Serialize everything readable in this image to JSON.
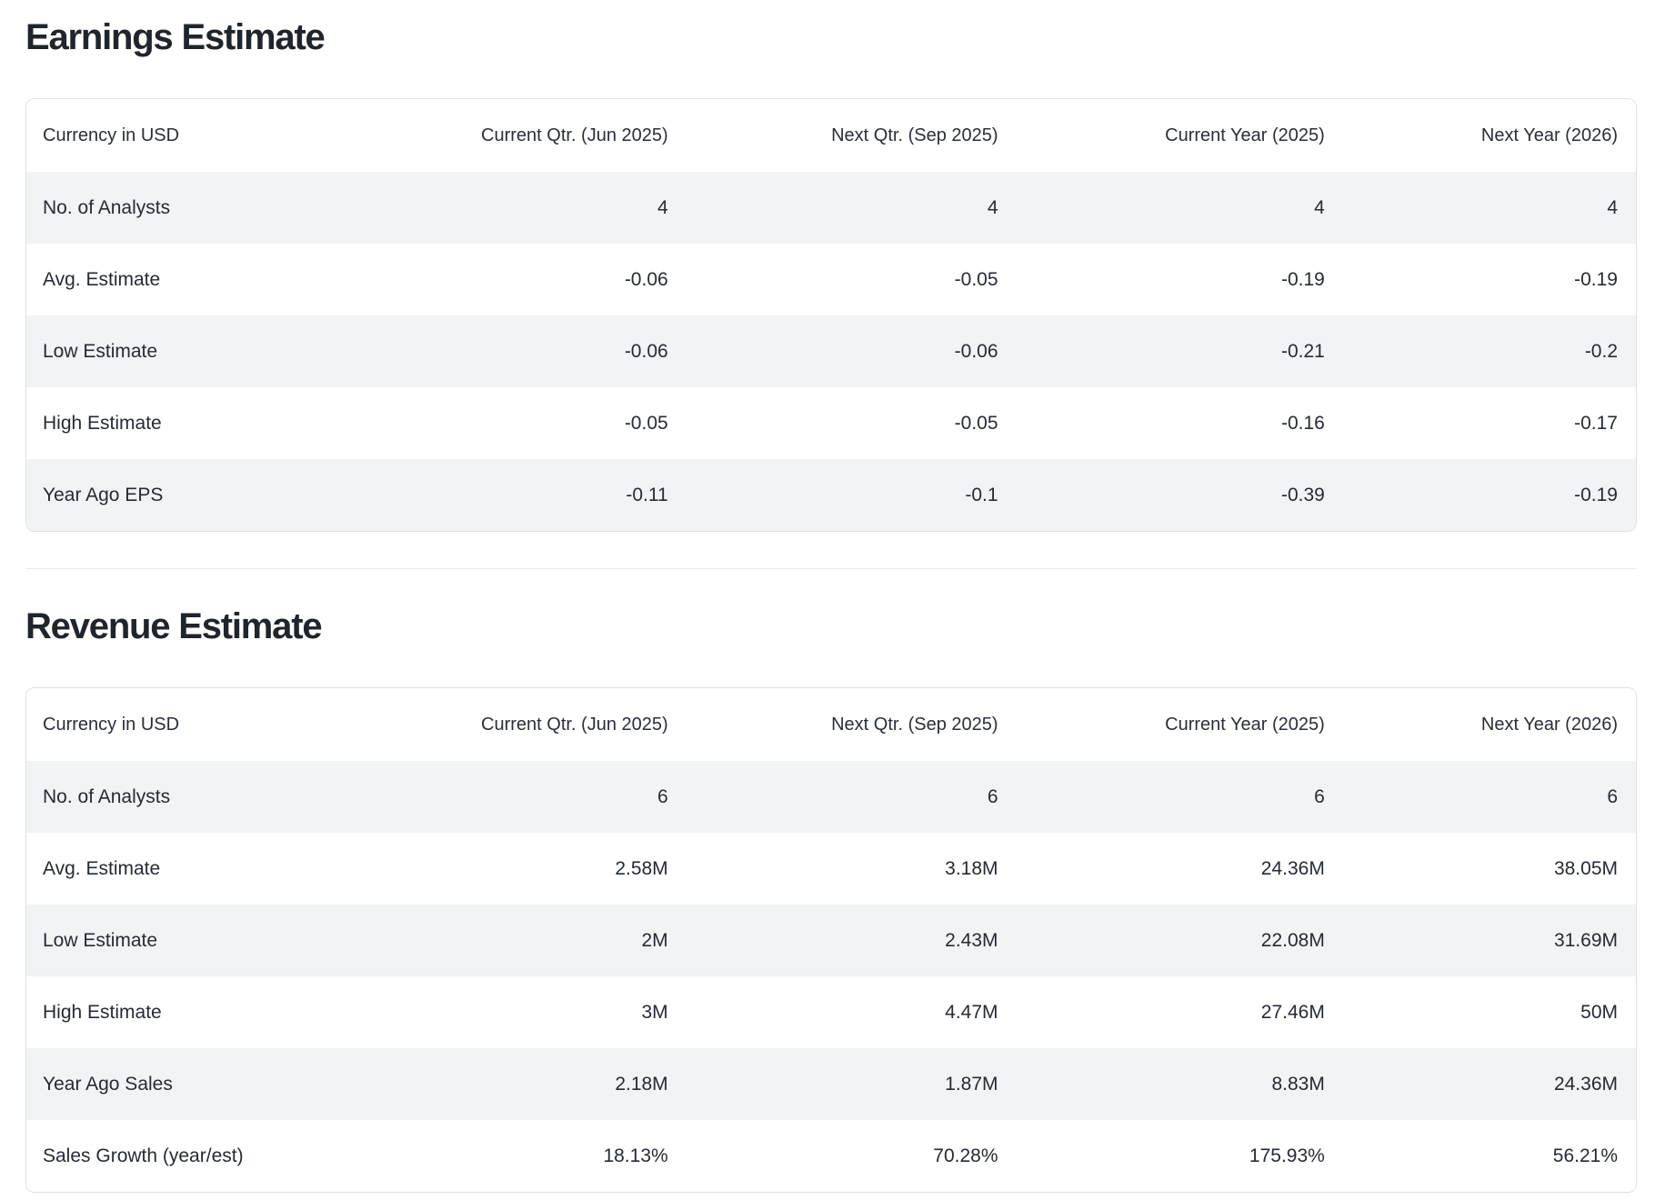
{
  "page": {
    "background": "#ffffff",
    "text_color": "#262b33",
    "title_color": "#20252c",
    "stripe_color": "#f2f3f5",
    "card_border_color": "#dee0e5",
    "divider_color": "#e9eaed"
  },
  "sections": [
    {
      "title": "Earnings Estimate",
      "columns": [
        "Currency in USD",
        "Current Qtr. (Jun 2025)",
        "Next Qtr. (Sep 2025)",
        "Current Year (2025)",
        "Next Year (2026)"
      ],
      "rows": [
        {
          "label": "No. of Analysts",
          "values": [
            "4",
            "4",
            "4",
            "4"
          ]
        },
        {
          "label": "Avg. Estimate",
          "values": [
            "-0.06",
            "-0.05",
            "-0.19",
            "-0.19"
          ]
        },
        {
          "label": "Low Estimate",
          "values": [
            "-0.06",
            "-0.06",
            "-0.21",
            "-0.2"
          ]
        },
        {
          "label": "High Estimate",
          "values": [
            "-0.05",
            "-0.05",
            "-0.16",
            "-0.17"
          ]
        },
        {
          "label": "Year Ago EPS",
          "values": [
            "-0.11",
            "-0.1",
            "-0.39",
            "-0.19"
          ]
        }
      ]
    },
    {
      "title": "Revenue Estimate",
      "columns": [
        "Currency in USD",
        "Current Qtr. (Jun 2025)",
        "Next Qtr. (Sep 2025)",
        "Current Year (2025)",
        "Next Year (2026)"
      ],
      "rows": [
        {
          "label": "No. of Analysts",
          "values": [
            "6",
            "6",
            "6",
            "6"
          ]
        },
        {
          "label": "Avg. Estimate",
          "values": [
            "2.58M",
            "3.18M",
            "24.36M",
            "38.05M"
          ]
        },
        {
          "label": "Low Estimate",
          "values": [
            "2M",
            "2.43M",
            "22.08M",
            "31.69M"
          ]
        },
        {
          "label": "High Estimate",
          "values": [
            "3M",
            "4.47M",
            "27.46M",
            "50M"
          ]
        },
        {
          "label": "Year Ago Sales",
          "values": [
            "2.18M",
            "1.87M",
            "8.83M",
            "24.36M"
          ]
        },
        {
          "label": "Sales Growth (year/est)",
          "values": [
            "18.13%",
            "70.28%",
            "175.93%",
            "56.21%"
          ]
        }
      ]
    }
  ]
}
